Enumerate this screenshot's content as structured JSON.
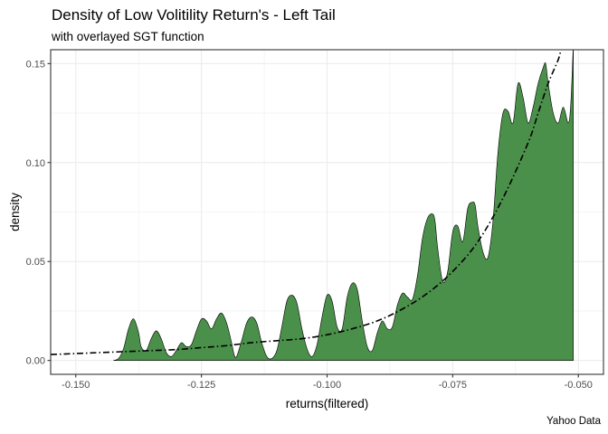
{
  "title": "Density of Low Volitility Return's - Left Tail",
  "subtitle": "with overlayed SGT function",
  "caption": "Yahoo Data",
  "chart_data": {
    "type": "area",
    "title": "Density of Low Volitility Return's - Left Tail",
    "subtitle": "with overlayed SGT function",
    "xlabel": "returns(filtered)",
    "ylabel": "density",
    "xlim": [
      -0.155,
      -0.045
    ],
    "ylim": [
      -0.007,
      0.157
    ],
    "x_ticks": [
      -0.15,
      -0.125,
      -0.1,
      -0.075,
      -0.05
    ],
    "x_tick_labels": [
      "-0.150",
      "-0.125",
      "-0.100",
      "-0.075",
      "-0.050"
    ],
    "y_ticks": [
      0,
      0.05,
      0.1,
      0.15
    ],
    "y_tick_labels": [
      "0.00",
      "0.05",
      "0.10",
      "0.15"
    ],
    "grid": true,
    "colors": {
      "density_fill": "#4a8f4a",
      "density_outline": "#000000",
      "sgt_line": "#000000",
      "grid": "#ebebeb",
      "panel_border": "#333333"
    },
    "series": [
      {
        "style": "filled-density",
        "x": [
          -0.1425,
          -0.1415,
          -0.1405,
          -0.1395,
          -0.1385,
          -0.1375,
          -0.137,
          -0.136,
          -0.135,
          -0.134,
          -0.133,
          -0.132,
          -0.131,
          -0.13,
          -0.129,
          -0.128,
          -0.127,
          -0.126,
          -0.125,
          -0.124,
          -0.123,
          -0.122,
          -0.121,
          -0.12,
          -0.119,
          -0.1185,
          -0.118,
          -0.117,
          -0.116,
          -0.115,
          -0.114,
          -0.113,
          -0.112,
          -0.111,
          -0.11,
          -0.109,
          -0.108,
          -0.107,
          -0.106,
          -0.105,
          -0.104,
          -0.103,
          -0.102,
          -0.101,
          -0.1,
          -0.099,
          -0.098,
          -0.097,
          -0.096,
          -0.095,
          -0.094,
          -0.093,
          -0.092,
          -0.091,
          -0.09,
          -0.089,
          -0.088,
          -0.087,
          -0.086,
          -0.085,
          -0.084,
          -0.083,
          -0.082,
          -0.081,
          -0.08,
          -0.079,
          -0.0785,
          -0.078,
          -0.077,
          -0.076,
          -0.075,
          -0.074,
          -0.073,
          -0.072,
          -0.071,
          -0.0705,
          -0.07,
          -0.069,
          -0.068,
          -0.067,
          -0.066,
          -0.065,
          -0.064,
          -0.063,
          -0.062,
          -0.061,
          -0.06,
          -0.059,
          -0.058,
          -0.057,
          -0.0565,
          -0.056,
          -0.055,
          -0.054,
          -0.053,
          -0.052,
          -0.0515,
          -0.051
        ],
        "y": [
          0.0,
          0.001,
          0.006,
          0.016,
          0.021,
          0.014,
          0.007,
          0.005,
          0.011,
          0.015,
          0.011,
          0.004,
          0.002,
          0.005,
          0.009,
          0.007,
          0.008,
          0.015,
          0.021,
          0.02,
          0.016,
          0.021,
          0.024,
          0.019,
          0.009,
          0.003,
          0.002,
          0.01,
          0.019,
          0.022,
          0.019,
          0.009,
          0.002,
          0.001,
          0.005,
          0.017,
          0.03,
          0.033,
          0.029,
          0.016,
          0.006,
          0.002,
          0.008,
          0.022,
          0.033,
          0.03,
          0.017,
          0.016,
          0.032,
          0.039,
          0.036,
          0.02,
          0.007,
          0.005,
          0.014,
          0.02,
          0.016,
          0.017,
          0.028,
          0.034,
          0.032,
          0.031,
          0.043,
          0.062,
          0.072,
          0.074,
          0.07,
          0.057,
          0.04,
          0.045,
          0.065,
          0.068,
          0.06,
          0.077,
          0.08,
          0.078,
          0.068,
          0.055,
          0.052,
          0.07,
          0.105,
          0.125,
          0.126,
          0.12,
          0.14,
          0.133,
          0.12,
          0.128,
          0.14,
          0.148,
          0.15,
          0.14,
          0.125,
          0.12,
          0.128,
          0.12,
          0.13,
          0.16
        ]
      },
      {
        "style": "dash-dot",
        "x": [
          -0.155,
          -0.15,
          -0.145,
          -0.14,
          -0.135,
          -0.13,
          -0.125,
          -0.12,
          -0.115,
          -0.11,
          -0.105,
          -0.1,
          -0.095,
          -0.09,
          -0.085,
          -0.08,
          -0.075,
          -0.07,
          -0.065,
          -0.06,
          -0.058,
          -0.056,
          -0.054,
          -0.0535
        ],
        "y": [
          0.003,
          0.0035,
          0.004,
          0.0045,
          0.005,
          0.0055,
          0.0065,
          0.0075,
          0.009,
          0.01,
          0.011,
          0.013,
          0.016,
          0.02,
          0.026,
          0.034,
          0.045,
          0.06,
          0.082,
          0.11,
          0.125,
          0.14,
          0.152,
          0.157
        ]
      }
    ]
  }
}
